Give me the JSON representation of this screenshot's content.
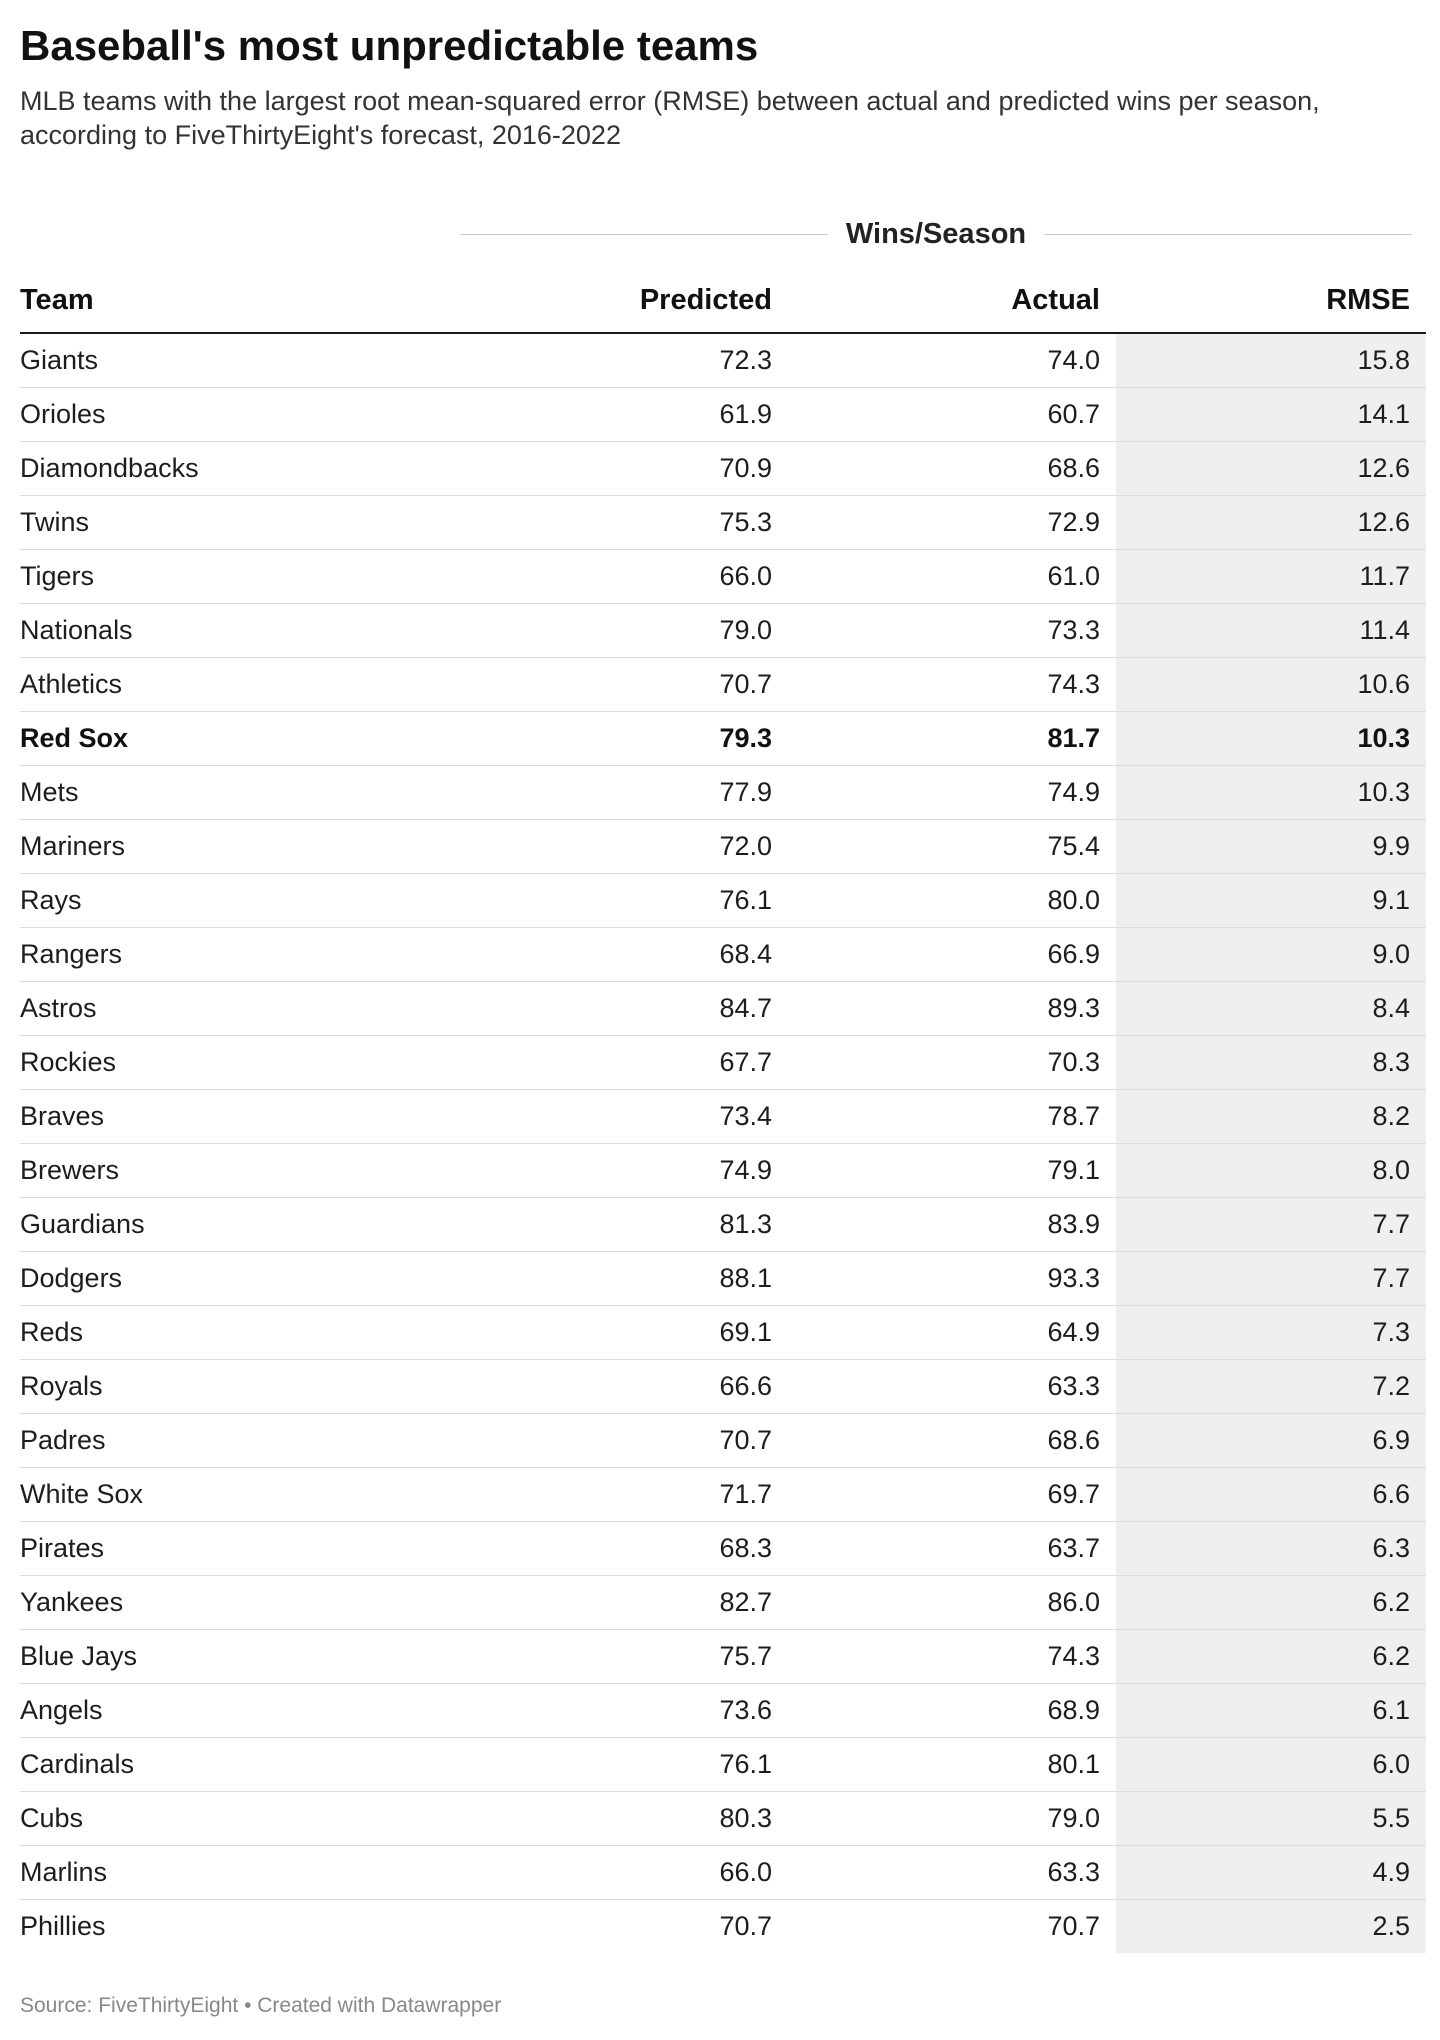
{
  "title": "Baseball's most unpredictable teams",
  "subtitle": "MLB teams with the largest root mean-squared error (RMSE) between actual and predicted wins per season, according to FiveThirtyEight's forecast, 2016-2022",
  "spanner_label": "Wins/Season",
  "columns": {
    "team": "Team",
    "predicted": "Predicted",
    "actual": "Actual",
    "rmse": "RMSE"
  },
  "source": "Source: FiveThirtyEight • Created with Datawrapper",
  "colors": {
    "rmse_column_background": "#efefef",
    "header_rule": "#1a1a1a",
    "row_rule": "#dcdcdc"
  },
  "chart_data": {
    "type": "table",
    "title": "Baseball's most unpredictable teams",
    "columns": [
      "Team",
      "Predicted",
      "Actual",
      "RMSE"
    ],
    "highlighted_team": "Red Sox",
    "rows": [
      {
        "team": "Giants",
        "predicted": "72.3",
        "actual": "74.0",
        "rmse": "15.8"
      },
      {
        "team": "Orioles",
        "predicted": "61.9",
        "actual": "60.7",
        "rmse": "14.1"
      },
      {
        "team": "Diamondbacks",
        "predicted": "70.9",
        "actual": "68.6",
        "rmse": "12.6"
      },
      {
        "team": "Twins",
        "predicted": "75.3",
        "actual": "72.9",
        "rmse": "12.6"
      },
      {
        "team": "Tigers",
        "predicted": "66.0",
        "actual": "61.0",
        "rmse": "11.7"
      },
      {
        "team": "Nationals",
        "predicted": "79.0",
        "actual": "73.3",
        "rmse": "11.4"
      },
      {
        "team": "Athletics",
        "predicted": "70.7",
        "actual": "74.3",
        "rmse": "10.6"
      },
      {
        "team": "Red Sox",
        "predicted": "79.3",
        "actual": "81.7",
        "rmse": "10.3"
      },
      {
        "team": "Mets",
        "predicted": "77.9",
        "actual": "74.9",
        "rmse": "10.3"
      },
      {
        "team": "Mariners",
        "predicted": "72.0",
        "actual": "75.4",
        "rmse": "9.9"
      },
      {
        "team": "Rays",
        "predicted": "76.1",
        "actual": "80.0",
        "rmse": "9.1"
      },
      {
        "team": "Rangers",
        "predicted": "68.4",
        "actual": "66.9",
        "rmse": "9.0"
      },
      {
        "team": "Astros",
        "predicted": "84.7",
        "actual": "89.3",
        "rmse": "8.4"
      },
      {
        "team": "Rockies",
        "predicted": "67.7",
        "actual": "70.3",
        "rmse": "8.3"
      },
      {
        "team": "Braves",
        "predicted": "73.4",
        "actual": "78.7",
        "rmse": "8.2"
      },
      {
        "team": "Brewers",
        "predicted": "74.9",
        "actual": "79.1",
        "rmse": "8.0"
      },
      {
        "team": "Guardians",
        "predicted": "81.3",
        "actual": "83.9",
        "rmse": "7.7"
      },
      {
        "team": "Dodgers",
        "predicted": "88.1",
        "actual": "93.3",
        "rmse": "7.7"
      },
      {
        "team": "Reds",
        "predicted": "69.1",
        "actual": "64.9",
        "rmse": "7.3"
      },
      {
        "team": "Royals",
        "predicted": "66.6",
        "actual": "63.3",
        "rmse": "7.2"
      },
      {
        "team": "Padres",
        "predicted": "70.7",
        "actual": "68.6",
        "rmse": "6.9"
      },
      {
        "team": "White Sox",
        "predicted": "71.7",
        "actual": "69.7",
        "rmse": "6.6"
      },
      {
        "team": "Pirates",
        "predicted": "68.3",
        "actual": "63.7",
        "rmse": "6.3"
      },
      {
        "team": "Yankees",
        "predicted": "82.7",
        "actual": "86.0",
        "rmse": "6.2"
      },
      {
        "team": "Blue Jays",
        "predicted": "75.7",
        "actual": "74.3",
        "rmse": "6.2"
      },
      {
        "team": "Angels",
        "predicted": "73.6",
        "actual": "68.9",
        "rmse": "6.1"
      },
      {
        "team": "Cardinals",
        "predicted": "76.1",
        "actual": "80.1",
        "rmse": "6.0"
      },
      {
        "team": "Cubs",
        "predicted": "80.3",
        "actual": "79.0",
        "rmse": "5.5"
      },
      {
        "team": "Marlins",
        "predicted": "66.0",
        "actual": "63.3",
        "rmse": "4.9"
      },
      {
        "team": "Phillies",
        "predicted": "70.7",
        "actual": "70.7",
        "rmse": "2.5"
      }
    ]
  }
}
